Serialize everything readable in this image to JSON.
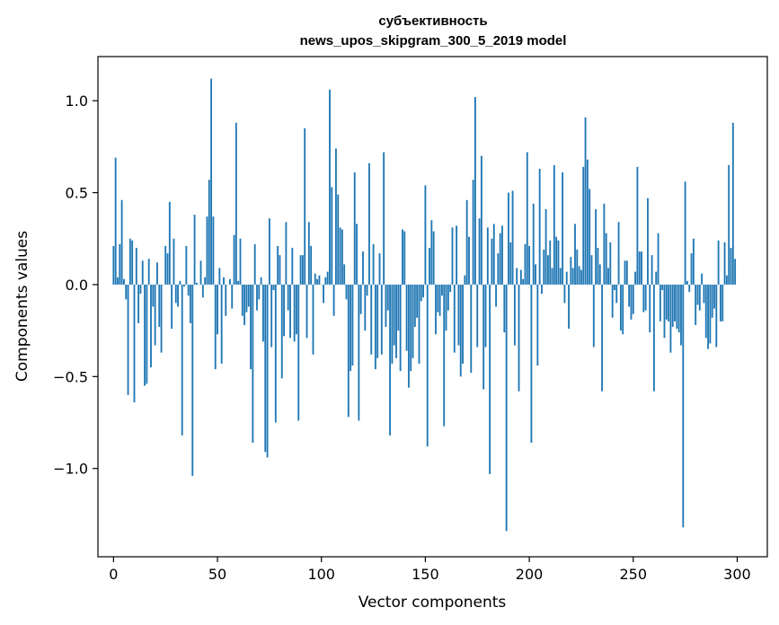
{
  "chart_data": {
    "type": "bar",
    "title": "субъективность",
    "subtitle": "news_upos_skipgram_300_5_2019 model",
    "xlabel": "Vector components",
    "ylabel": "Components values",
    "xlim": [
      -7.5,
      314.5
    ],
    "ylim": [
      -1.48,
      1.24
    ],
    "xticks": [
      0,
      50,
      100,
      150,
      200,
      250,
      300
    ],
    "yticks": [
      -1.0,
      -0.5,
      0.0,
      0.5,
      1.0
    ],
    "ytick_labels": [
      "−1.0",
      "−0.5",
      "0.0",
      "0.5",
      "1.0"
    ],
    "color": "#1f77b4",
    "grid": false,
    "values": [
      0.21,
      0.69,
      0.04,
      0.22,
      0.46,
      0.03,
      -0.08,
      -0.6,
      0.25,
      0.24,
      -0.64,
      0.2,
      -0.21,
      -0.05,
      0.13,
      -0.55,
      -0.54,
      0.14,
      -0.45,
      -0.12,
      -0.33,
      0.12,
      -0.23,
      -0.37,
      0.0,
      0.21,
      0.17,
      0.45,
      -0.24,
      0.25,
      -0.1,
      -0.12,
      0.02,
      -0.82,
      -0.01,
      0.21,
      -0.06,
      -0.21,
      -1.04,
      0.38,
      0.01,
      0.0,
      0.13,
      -0.07,
      0.04,
      0.37,
      0.57,
      1.12,
      0.37,
      -0.46,
      -0.27,
      0.09,
      -0.43,
      0.04,
      -0.17,
      0.0,
      0.03,
      -0.13,
      0.27,
      0.88,
      0.02,
      0.25,
      -0.17,
      -0.22,
      -0.15,
      -0.12,
      -0.46,
      -0.86,
      0.22,
      -0.14,
      -0.08,
      0.04,
      -0.31,
      -0.91,
      -0.94,
      0.36,
      -0.34,
      -0.03,
      -0.75,
      0.21,
      0.16,
      -0.51,
      -0.28,
      0.34,
      -0.14,
      -0.29,
      0.2,
      -0.31,
      -0.27,
      -0.74,
      0.16,
      0.16,
      0.85,
      -0.29,
      0.34,
      0.21,
      -0.38,
      0.06,
      0.03,
      0.05,
      0.0,
      -0.1,
      0.04,
      0.07,
      1.06,
      0.53,
      -0.17,
      0.74,
      0.49,
      0.31,
      0.3,
      0.11,
      -0.08,
      -0.72,
      -0.47,
      -0.44,
      0.61,
      0.33,
      -0.74,
      -0.16,
      0.18,
      -0.25,
      -0.06,
      0.66,
      -0.38,
      0.22,
      -0.46,
      -0.4,
      0.17,
      -0.38,
      0.72,
      -0.23,
      -0.14,
      -0.82,
      -0.43,
      -0.33,
      -0.4,
      -0.25,
      -0.47,
      0.3,
      0.29,
      -0.36,
      -0.56,
      -0.47,
      -0.4,
      -0.23,
      -0.18,
      -0.43,
      -0.09,
      -0.07,
      0.54,
      -0.88,
      0.2,
      0.35,
      0.29,
      -0.27,
      -0.15,
      -0.17,
      -0.06,
      -0.77,
      -0.25,
      -0.14,
      -0.04,
      0.31,
      -0.37,
      0.32,
      -0.33,
      -0.5,
      -0.43,
      0.05,
      0.46,
      0.26,
      -0.48,
      0.57,
      1.02,
      -0.34,
      0.36,
      0.7,
      -0.57,
      -0.34,
      0.31,
      -1.03,
      0.25,
      0.33,
      -0.12,
      0.17,
      0.28,
      0.32,
      -0.26,
      -1.34,
      0.5,
      0.23,
      0.51,
      -0.33,
      0.09,
      -0.58,
      0.08,
      0.03,
      0.22,
      0.72,
      0.21,
      -0.86,
      0.44,
      0.11,
      -0.44,
      0.63,
      -0.05,
      0.19,
      0.41,
      0.16,
      0.24,
      0.09,
      0.65,
      0.26,
      0.24,
      0.09,
      0.61,
      -0.1,
      0.07,
      -0.24,
      0.15,
      0.09,
      0.33,
      0.19,
      0.1,
      0.08,
      0.64,
      0.91,
      0.68,
      0.52,
      0.16,
      -0.34,
      0.41,
      0.2,
      0.11,
      -0.58,
      0.44,
      0.28,
      0.09,
      0.23,
      -0.18,
      -0.03,
      -0.1,
      0.34,
      -0.25,
      -0.27,
      0.13,
      0.13,
      -0.12,
      -0.19,
      -0.16,
      0.07,
      0.64,
      0.18,
      0.18,
      -0.15,
      -0.14,
      0.47,
      -0.26,
      0.16,
      -0.58,
      0.07,
      0.28,
      -0.2,
      -0.03,
      -0.29,
      -0.19,
      -0.2,
      -0.37,
      -0.23,
      -0.2,
      -0.24,
      -0.26,
      -0.33,
      -1.32,
      0.56,
      0.02,
      -0.04,
      0.17,
      0.25,
      -0.22,
      -0.11,
      -0.14,
      0.06,
      -0.1,
      -0.29,
      -0.35,
      -0.32,
      -0.18,
      -0.13,
      -0.34,
      0.24,
      -0.2,
      -0.2,
      0.23,
      0.05,
      0.65,
      0.2,
      0.88,
      0.14
    ]
  }
}
